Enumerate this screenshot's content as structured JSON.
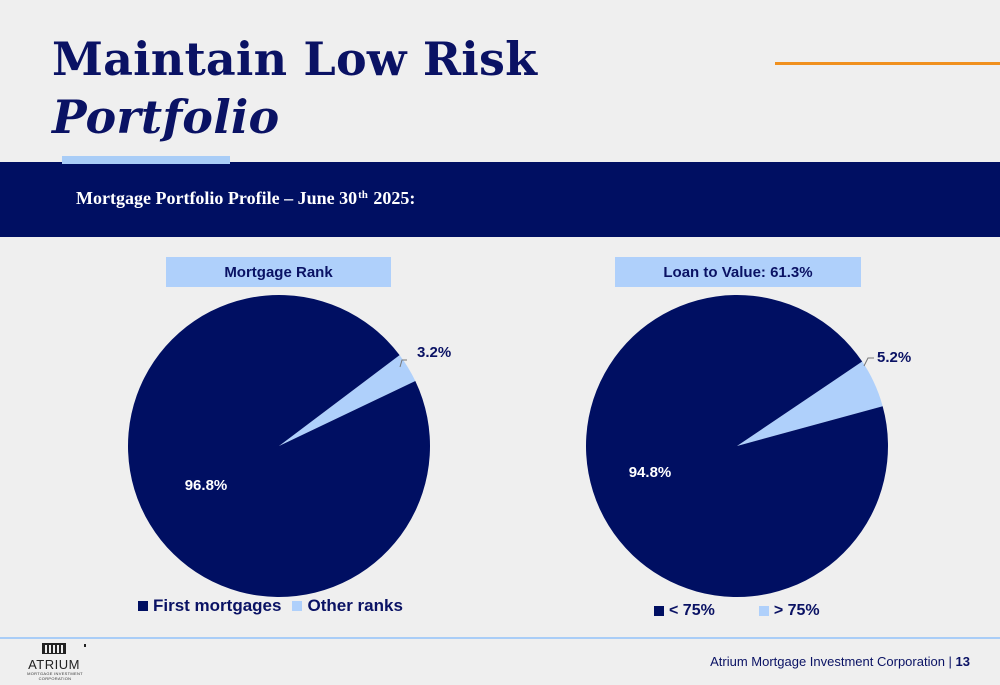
{
  "slide": {
    "title_line1": "Maintain Low Risk",
    "title_line2": "Portfolio",
    "band_pre": "Mortgage Portfolio Profile – June 30",
    "band_sup": "th",
    "band_post": " 2025:",
    "footer_company": "Atrium Mortgage Investment Corporation",
    "footer_sep": " | ",
    "page_number": "13",
    "logo_word": "ATRIUM",
    "logo_sub": "MORTGAGE INVESTMENT CORPORATION",
    "colors": {
      "navy": "#000f62",
      "light_blue": "#afd0fb",
      "orange": "#f0901e"
    }
  },
  "chart_data": [
    {
      "type": "pie",
      "title": "Mortgage Rank",
      "categories": [
        "First mortgages",
        "Other ranks"
      ],
      "values": [
        96.8,
        3.2
      ],
      "data_labels": [
        "96.8%",
        "3.2%"
      ],
      "colors": [
        "#000f62",
        "#afd0fb"
      ],
      "legend_position": "bottom"
    },
    {
      "type": "pie",
      "title": "Loan to Value: 61.3%",
      "categories": [
        "< 75%",
        "> 75%"
      ],
      "values": [
        94.8,
        5.2
      ],
      "data_labels": [
        "94.8%",
        "5.2%"
      ],
      "colors": [
        "#000f62",
        "#afd0fb"
      ],
      "legend_position": "bottom"
    }
  ]
}
